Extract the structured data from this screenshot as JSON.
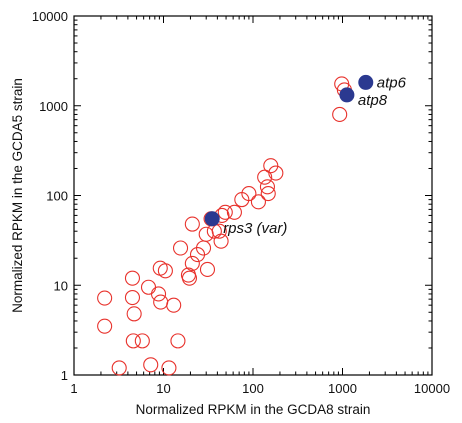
{
  "chart_data": {
    "type": "scatter",
    "title": "",
    "xlabel": "Normalized RPKM in the GCDA8 strain",
    "ylabel": "Normalized RPKM in the GCDA5 strain",
    "xscale": "log",
    "yscale": "log",
    "xlim": [
      1,
      10000
    ],
    "ylim": [
      1,
      10000
    ],
    "grid": false,
    "x_tick_labels": [
      "1",
      "10",
      "100",
      "1000",
      "10000"
    ],
    "y_tick_labels": [
      "1",
      "10",
      "100",
      "1000",
      "10000"
    ],
    "colors": {
      "open_circle": "#e8322c",
      "highlight": "#2b3990",
      "axis": "#000000"
    },
    "series": [
      {
        "marker": "open-circle",
        "points": [
          [
            2.2,
            7.2
          ],
          [
            2.2,
            3.5
          ],
          [
            3.2,
            1.2
          ],
          [
            4.5,
            12
          ],
          [
            4.5,
            7.3
          ],
          [
            4.7,
            4.8
          ],
          [
            4.6,
            2.4
          ],
          [
            5.8,
            2.4
          ],
          [
            6.8,
            9.5
          ],
          [
            7.2,
            1.3
          ],
          [
            9.2,
            15.5
          ],
          [
            8.8,
            8
          ],
          [
            9.3,
            6.5
          ],
          [
            10.5,
            14.5
          ],
          [
            11.5,
            1.2
          ],
          [
            13,
            6
          ],
          [
            14.5,
            2.4
          ],
          [
            15.5,
            26
          ],
          [
            19,
            13
          ],
          [
            19.5,
            12
          ],
          [
            21,
            48
          ],
          [
            21,
            17.5
          ],
          [
            24,
            22
          ],
          [
            28,
            26
          ],
          [
            30,
            37
          ],
          [
            31,
            15
          ],
          [
            34,
            55
          ],
          [
            37,
            40
          ],
          [
            42,
            40
          ],
          [
            44,
            31
          ],
          [
            45,
            60
          ],
          [
            49,
            65
          ],
          [
            62,
            65
          ],
          [
            75,
            90
          ],
          [
            90,
            105
          ],
          [
            115,
            85
          ],
          [
            135,
            160
          ],
          [
            145,
            125
          ],
          [
            148,
            105
          ],
          [
            158,
            215
          ],
          [
            180,
            178
          ],
          [
            930,
            800
          ],
          [
            980,
            1750
          ],
          [
            1050,
            1500
          ]
        ]
      },
      {
        "marker": "filled-circle",
        "points": [
          {
            "x": 35,
            "y": 55,
            "label": "rps3 (var)"
          },
          {
            "x": 1120,
            "y": 1320,
            "label": "atp8"
          },
          {
            "x": 1820,
            "y": 1820,
            "label": "atp6"
          }
        ]
      }
    ]
  }
}
